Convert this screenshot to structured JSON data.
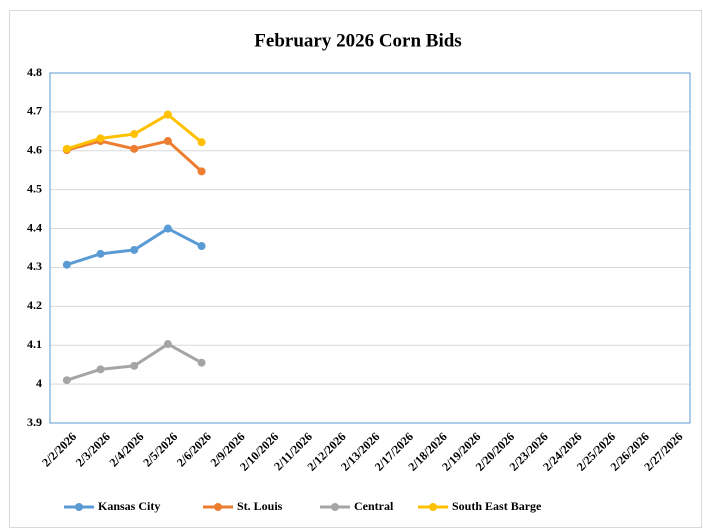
{
  "chart_data": {
    "type": "line",
    "title": "February 2026 Corn Bids",
    "categories": [
      "2/2/2026",
      "2/3/2026",
      "2/4/2026",
      "2/5/2026",
      "2/6/2026",
      "2/9/2026",
      "2/10/2026",
      "2/11/2026",
      "2/12/2026",
      "2/13/2026",
      "2/17/2026",
      "2/18/2026",
      "2/19/2026",
      "2/20/2026",
      "2/23/2026",
      "2/24/2026",
      "2/25/2026",
      "2/26/2026",
      "2/27/2026"
    ],
    "series": [
      {
        "name": "Kansas City",
        "color": "#5b9bd5",
        "values": [
          4.307,
          4.335,
          4.345,
          4.4,
          4.355,
          null,
          null,
          null,
          null,
          null,
          null,
          null,
          null,
          null,
          null,
          null,
          null,
          null,
          null
        ]
      },
      {
        "name": "St. Louis",
        "color": "#ed7d31",
        "values": [
          4.602,
          4.625,
          4.605,
          4.625,
          4.547,
          null,
          null,
          null,
          null,
          null,
          null,
          null,
          null,
          null,
          null,
          null,
          null,
          null,
          null
        ]
      },
      {
        "name": "Central",
        "color": "#a5a5a5",
        "values": [
          4.01,
          4.038,
          4.047,
          4.103,
          4.055,
          null,
          null,
          null,
          null,
          null,
          null,
          null,
          null,
          null,
          null,
          null,
          null,
          null,
          null
        ]
      },
      {
        "name": "South East Barge",
        "color": "#ffc000",
        "values": [
          4.605,
          4.632,
          4.643,
          4.693,
          4.622,
          null,
          null,
          null,
          null,
          null,
          null,
          null,
          null,
          null,
          null,
          null,
          null,
          null,
          null
        ]
      }
    ],
    "ylim": [
      3.9,
      4.8
    ],
    "yticks": [
      3.9,
      4,
      4.1,
      4.2,
      4.3,
      4.4,
      4.5,
      4.6,
      4.7,
      4.8
    ],
    "grid": true,
    "legend": "bottom"
  }
}
